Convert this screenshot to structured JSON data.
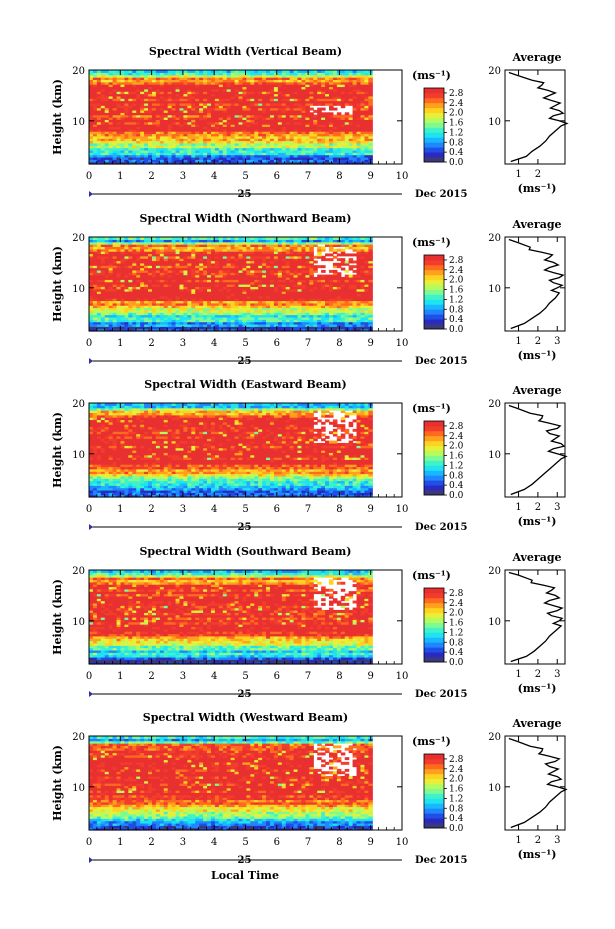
{
  "figure": {
    "xlabel": "Local Time",
    "date_label": "Dec 2015",
    "day_label": "25",
    "ylabel": "Height (km)",
    "unit_label": "(ms⁻¹)",
    "avg_title": "Average",
    "avg_xlabel": "(ms⁻¹)"
  },
  "colorbar": {
    "tick_labels": [
      "0.0",
      "0.4",
      "0.8",
      "1.2",
      "1.6",
      "2.0",
      "2.4",
      "2.8"
    ],
    "colors": [
      "#3a3a7a",
      "#2a2ac0",
      "#1f4fe6",
      "#1f86ff",
      "#19b7ff",
      "#1fe3f0",
      "#3ff2c8",
      "#7dfa93",
      "#b6fb5c",
      "#e6f03a",
      "#ffd21f",
      "#ffa11f",
      "#ff6a1f",
      "#f23c2c",
      "#e93030"
    ]
  },
  "chart_data": [
    {
      "type": "heatmap",
      "title": "Spectral Width (Vertical Beam)",
      "xlabel": "Local Time",
      "ylabel": "Height (km)",
      "x_ticks": [
        0,
        1,
        2,
        3,
        4,
        5,
        6,
        7,
        8,
        9,
        10
      ],
      "xlim": [
        0,
        10
      ],
      "y_ticks": [
        10,
        20
      ],
      "ylim": [
        1.5,
        20
      ],
      "data_x_range": [
        0,
        9.05
      ],
      "colorbar_ticks": [
        0.0,
        0.4,
        0.8,
        1.2,
        1.6,
        2.0,
        2.4,
        2.8
      ],
      "colorbar_unit": "(ms⁻¹)",
      "profile": {
        "title": "Average",
        "xlabel": "(ms⁻¹)",
        "x_ticks": [
          1,
          2
        ],
        "xlim": [
          0.3,
          3.4
        ],
        "y_ticks": [
          10,
          20
        ],
        "heights": [
          2,
          3,
          4,
          5,
          6,
          7,
          8,
          9,
          10,
          11,
          12,
          13,
          14,
          15,
          16,
          17,
          18,
          19,
          19.5
        ],
        "values": [
          0.6,
          1.4,
          1.7,
          2.1,
          2.4,
          2.6,
          2.9,
          3.2,
          3.1,
          2.8,
          3.1,
          2.9,
          2.7,
          2.6,
          2.5,
          2.2,
          1.7,
          0.9,
          0.5
        ]
      }
    },
    {
      "type": "heatmap",
      "title": "Spectral Width (Northward Beam)",
      "xlabel": "Local Time",
      "ylabel": "Height (km)",
      "x_ticks": [
        0,
        1,
        2,
        3,
        4,
        5,
        6,
        7,
        8,
        9,
        10
      ],
      "xlim": [
        0,
        10
      ],
      "y_ticks": [
        10,
        20
      ],
      "ylim": [
        1.5,
        20
      ],
      "data_x_range": [
        0,
        9.05
      ],
      "colorbar_ticks": [
        0.0,
        0.4,
        0.8,
        1.2,
        1.6,
        2.0,
        2.4,
        2.8
      ],
      "colorbar_unit": "(ms⁻¹)",
      "profile": {
        "title": "Average",
        "xlabel": "(ms⁻¹)",
        "x_ticks": [
          1,
          2,
          3
        ],
        "xlim": [
          0.3,
          3.4
        ],
        "y_ticks": [
          10,
          20
        ],
        "heights": [
          2,
          3,
          4,
          5,
          6,
          7,
          8,
          9,
          10,
          11,
          12,
          13,
          14,
          15,
          16,
          17,
          18,
          19,
          19.5
        ],
        "values": [
          0.6,
          1.3,
          1.7,
          2.1,
          2.4,
          2.6,
          2.9,
          3.1,
          3.0,
          2.8,
          3.1,
          2.8,
          2.6,
          2.8,
          2.6,
          2.2,
          1.6,
          0.9,
          0.5
        ]
      }
    },
    {
      "type": "heatmap",
      "title": "Spectral Width (Eastward Beam)",
      "xlabel": "Local Time",
      "ylabel": "Height (km)",
      "x_ticks": [
        0,
        1,
        2,
        3,
        4,
        5,
        6,
        7,
        8,
        9,
        10
      ],
      "xlim": [
        0,
        10
      ],
      "y_ticks": [
        10,
        20
      ],
      "ylim": [
        1.5,
        20
      ],
      "data_x_range": [
        0,
        9.05
      ],
      "colorbar_ticks": [
        0.0,
        0.4,
        0.8,
        1.2,
        1.6,
        2.0,
        2.4,
        2.8
      ],
      "colorbar_unit": "(ms⁻¹)",
      "profile": {
        "title": "Average",
        "xlabel": "(ms⁻¹)",
        "x_ticks": [
          1,
          2,
          3
        ],
        "xlim": [
          0.3,
          3.4
        ],
        "y_ticks": [
          10,
          20
        ],
        "heights": [
          2,
          3,
          4,
          5,
          6,
          7,
          8,
          9,
          10,
          11,
          12,
          13,
          14,
          15,
          16,
          17,
          18,
          19,
          19.5
        ],
        "values": [
          0.6,
          1.3,
          1.7,
          2.0,
          2.3,
          2.6,
          2.9,
          3.2,
          3.0,
          2.8,
          3.2,
          2.9,
          2.6,
          3.0,
          2.6,
          2.2,
          1.6,
          0.9,
          0.5
        ]
      }
    },
    {
      "type": "heatmap",
      "title": "Spectral Width (Southward Beam)",
      "xlabel": "Local Time",
      "ylabel": "Height (km)",
      "x_ticks": [
        0,
        1,
        2,
        3,
        4,
        5,
        6,
        7,
        8,
        9,
        10
      ],
      "xlim": [
        0,
        10
      ],
      "y_ticks": [
        10,
        20
      ],
      "ylim": [
        1.5,
        20
      ],
      "data_x_range": [
        0,
        9.05
      ],
      "colorbar_ticks": [
        0.0,
        0.4,
        0.8,
        1.2,
        1.6,
        2.0,
        2.4,
        2.8
      ],
      "colorbar_unit": "(ms⁻¹)",
      "profile": {
        "title": "Average",
        "xlabel": "(ms⁻¹)",
        "x_ticks": [
          1,
          2,
          3
        ],
        "xlim": [
          0.3,
          3.4
        ],
        "y_ticks": [
          10,
          20
        ],
        "heights": [
          2,
          3,
          4,
          5,
          6,
          7,
          8,
          9,
          10,
          11,
          12,
          13,
          14,
          15,
          16,
          17,
          18,
          19,
          19.5
        ],
        "values": [
          0.6,
          1.4,
          1.8,
          2.1,
          2.4,
          2.6,
          2.9,
          3.2,
          3.1,
          2.7,
          3.0,
          2.8,
          2.6,
          2.9,
          2.7,
          2.3,
          1.7,
          1.0,
          0.5
        ]
      }
    },
    {
      "type": "heatmap",
      "title": "Spectral Width (Westward Beam)",
      "xlabel": "Local Time",
      "ylabel": "Height (km)",
      "x_ticks": [
        0,
        1,
        2,
        3,
        4,
        5,
        6,
        7,
        8,
        9,
        10
      ],
      "xlim": [
        0,
        10
      ],
      "y_ticks": [
        10,
        20
      ],
      "ylim": [
        1.5,
        20
      ],
      "data_x_range": [
        0,
        9.05
      ],
      "colorbar_ticks": [
        0.0,
        0.4,
        0.8,
        1.2,
        1.6,
        2.0,
        2.4,
        2.8
      ],
      "colorbar_unit": "(ms⁻¹)",
      "profile": {
        "title": "Average",
        "xlabel": "(ms⁻¹)",
        "x_ticks": [
          1,
          2,
          3
        ],
        "xlim": [
          0.3,
          3.4
        ],
        "y_ticks": [
          10,
          20
        ],
        "heights": [
          2,
          3,
          4,
          5,
          6,
          7,
          8,
          9,
          10,
          11,
          12,
          13,
          14,
          15,
          16,
          17,
          18,
          19,
          19.5
        ],
        "values": [
          0.6,
          1.3,
          1.7,
          2.1,
          2.4,
          2.6,
          2.9,
          3.2,
          3.0,
          2.7,
          3.0,
          2.8,
          2.6,
          2.9,
          2.6,
          2.2,
          1.6,
          0.9,
          0.5
        ]
      }
    }
  ]
}
